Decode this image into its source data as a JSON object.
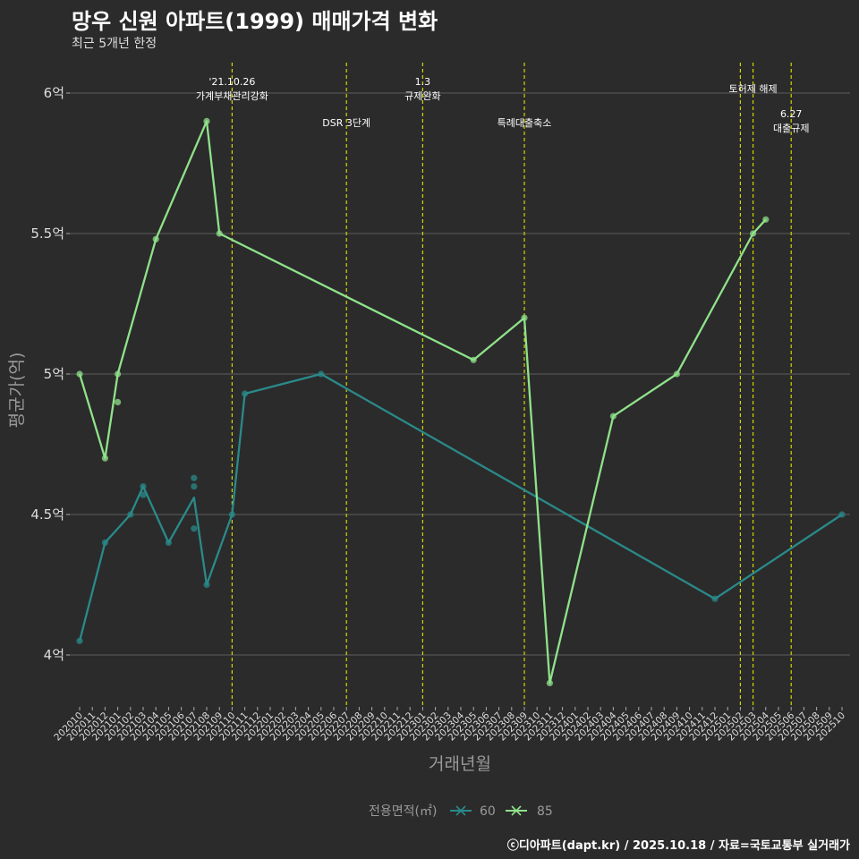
{
  "header": {
    "title": "망우 신원 아파트(1999) 매매가격 변화",
    "subtitle": "최근 5개년 한정"
  },
  "footer": {
    "caption": "ⓒ디아파트(dapt.kr) / 2025.10.18 / 자료=국토교통부 실거래가"
  },
  "colors": {
    "background": "#2b2b2b",
    "grid": "#5c5c5c",
    "event_line": "#d4d400",
    "series_60": "#2a8a8a",
    "series_85": "#90e28a"
  },
  "chart_data": {
    "type": "line",
    "xlabel": "거래년월",
    "ylabel": "평균가(억)",
    "ylim": [
      3.8,
      6.15
    ],
    "yticks": [
      4,
      4.5,
      5,
      5.5,
      6
    ],
    "ytick_labels": [
      "4억",
      "4.5억",
      "5억",
      "5.5억",
      "6억"
    ],
    "categories": [
      "202010",
      "202011",
      "202012",
      "202101",
      "202102",
      "202103",
      "202104",
      "202105",
      "202106",
      "202107",
      "202108",
      "202109",
      "202110",
      "202111",
      "202112",
      "202201",
      "202202",
      "202203",
      "202204",
      "202205",
      "202206",
      "202207",
      "202208",
      "202209",
      "202210",
      "202211",
      "202212",
      "202301",
      "202302",
      "202303",
      "202304",
      "202305",
      "202306",
      "202307",
      "202308",
      "202309",
      "202310",
      "202311",
      "202312",
      "202401",
      "202402",
      "202403",
      "202404",
      "202405",
      "202406",
      "202407",
      "202408",
      "202409",
      "202410",
      "202411",
      "202412",
      "202501",
      "202502",
      "202503",
      "202504",
      "202505",
      "202506",
      "202507",
      "202508",
      "202509",
      "202510"
    ],
    "series": [
      {
        "name": "60",
        "points": [
          [
            "202010",
            4.05
          ],
          [
            "202012",
            4.4
          ],
          [
            "202102",
            4.5
          ],
          [
            "202103",
            4.6
          ],
          [
            "202103",
            4.57
          ],
          [
            "202105",
            4.4
          ],
          [
            "202107",
            4.63
          ],
          [
            "202107",
            4.6
          ],
          [
            "202107",
            4.45
          ],
          [
            "202108",
            4.25
          ],
          [
            "202110",
            4.5
          ],
          [
            "202111",
            4.93
          ],
          [
            "202205",
            5.0
          ],
          [
            "202412",
            4.2
          ],
          [
            "202510",
            4.5
          ]
        ],
        "line": [
          [
            "202010",
            4.05
          ],
          [
            "202012",
            4.4
          ],
          [
            "202102",
            4.5
          ],
          [
            "202103",
            4.6
          ],
          [
            "202105",
            4.4
          ],
          [
            "202107",
            4.56
          ],
          [
            "202108",
            4.25
          ],
          [
            "202110",
            4.5
          ],
          [
            "202111",
            4.93
          ],
          [
            "202205",
            5.0
          ],
          [
            "202412",
            4.2
          ],
          [
            "202510",
            4.5
          ]
        ]
      },
      {
        "name": "85",
        "points": [
          [
            "202010",
            5.0
          ],
          [
            "202012",
            4.7
          ],
          [
            "202101",
            5.0
          ],
          [
            "202101",
            4.9
          ],
          [
            "202104",
            5.48
          ],
          [
            "202108",
            5.9
          ],
          [
            "202109",
            5.5
          ],
          [
            "202305",
            5.05
          ],
          [
            "202309",
            5.2
          ],
          [
            "202311",
            3.9
          ],
          [
            "202404",
            4.85
          ],
          [
            "202409",
            5.0
          ],
          [
            "202503",
            5.5
          ],
          [
            "202504",
            5.55
          ]
        ],
        "line": [
          [
            "202010",
            5.0
          ],
          [
            "202012",
            4.7
          ],
          [
            "202101",
            5.0
          ],
          [
            "202104",
            5.48
          ],
          [
            "202108",
            5.9
          ],
          [
            "202109",
            5.5
          ],
          [
            "202305",
            5.05
          ],
          [
            "202309",
            5.2
          ],
          [
            "202311",
            3.9
          ],
          [
            "202404",
            4.85
          ],
          [
            "202409",
            5.0
          ],
          [
            "202503",
            5.5
          ],
          [
            "202504",
            5.55
          ]
        ]
      }
    ],
    "events": [
      {
        "month": "202110",
        "label": [
          "'21.10.26",
          "가계부채관리강화"
        ],
        "level": "high"
      },
      {
        "month": "202207",
        "label": [
          "DSR 3단계"
        ],
        "level": "low"
      },
      {
        "month": "202301",
        "label": [
          "1.3",
          "규제완화"
        ],
        "level": "high"
      },
      {
        "month": "202309",
        "label": [
          "특례대출축소"
        ],
        "level": "low"
      },
      {
        "month": "202502",
        "label": [],
        "level": "high"
      },
      {
        "month": "202503",
        "label": [
          "토허제 해제"
        ],
        "level": "high"
      },
      {
        "month": "202506",
        "label": [
          "6.27",
          "대출규제"
        ],
        "level": "low"
      }
    ],
    "legend": {
      "title": "전용면적(㎡)",
      "entries": [
        "60",
        "85"
      ],
      "position": "bottom"
    }
  }
}
